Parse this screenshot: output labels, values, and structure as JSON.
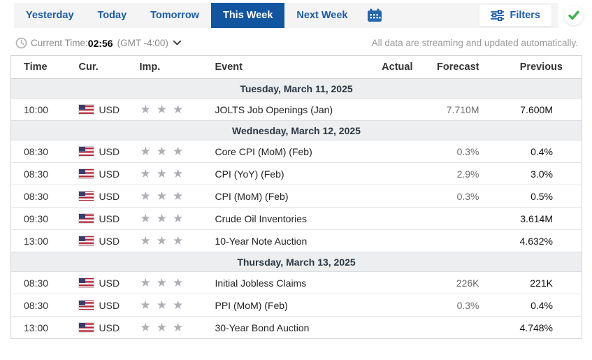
{
  "toolbar": {
    "tabs": [
      {
        "label": "Yesterday",
        "active": false
      },
      {
        "label": "Today",
        "active": false
      },
      {
        "label": "Tomorrow",
        "active": false
      },
      {
        "label": "This Week",
        "active": true
      },
      {
        "label": "Next Week",
        "active": false
      }
    ],
    "calendar_icon": "date-picker-calendar-icon",
    "filters_label": "Filters",
    "filters_icon": "sliders-icon",
    "status_icon": "green-check-icon"
  },
  "timebar": {
    "clock_icon": "clock-icon",
    "label": "Current Time:",
    "time": "02:56",
    "timezone": "(GMT -4:00)",
    "chevron_icon": "chevron-down-icon",
    "note": "All data are streaming and updated automatically."
  },
  "table": {
    "headers": {
      "time": "Time",
      "cur": "Cur.",
      "imp": "Imp.",
      "event": "Event",
      "actual": "Actual",
      "forecast": "Forecast",
      "previous": "Previous"
    },
    "star_char": "★",
    "flag_icon": "us-flag-icon",
    "sections": [
      {
        "date": "Tuesday, March 11, 2025",
        "rows": [
          {
            "time": "10:00",
            "currency": "USD",
            "importance": 3,
            "event": "JOLTS Job Openings (Jan)",
            "actual": "",
            "forecast": "7.710M",
            "previous": "7.600M"
          }
        ]
      },
      {
        "date": "Wednesday, March 12, 2025",
        "rows": [
          {
            "time": "08:30",
            "currency": "USD",
            "importance": 3,
            "event": "Core CPI (MoM) (Feb)",
            "actual": "",
            "forecast": "0.3%",
            "previous": "0.4%"
          },
          {
            "time": "08:30",
            "currency": "USD",
            "importance": 3,
            "event": "CPI (YoY) (Feb)",
            "actual": "",
            "forecast": "2.9%",
            "previous": "3.0%"
          },
          {
            "time": "08:30",
            "currency": "USD",
            "importance": 3,
            "event": "CPI (MoM) (Feb)",
            "actual": "",
            "forecast": "0.3%",
            "previous": "0.5%"
          },
          {
            "time": "09:30",
            "currency": "USD",
            "importance": 3,
            "event": "Crude Oil Inventories",
            "actual": "",
            "forecast": "",
            "previous": "3.614M"
          },
          {
            "time": "13:00",
            "currency": "USD",
            "importance": 3,
            "event": "10-Year Note Auction",
            "actual": "",
            "forecast": "",
            "previous": "4.632%"
          }
        ]
      },
      {
        "date": "Thursday, March 13, 2025",
        "rows": [
          {
            "time": "08:30",
            "currency": "USD",
            "importance": 3,
            "event": "Initial Jobless Claims",
            "actual": "",
            "forecast": "226K",
            "previous": "221K"
          },
          {
            "time": "08:30",
            "currency": "USD",
            "importance": 3,
            "event": "PPI (MoM) (Feb)",
            "actual": "",
            "forecast": "0.3%",
            "previous": "0.4%"
          },
          {
            "time": "13:00",
            "currency": "USD",
            "importance": 3,
            "event": "30-Year Bond Auction",
            "actual": "",
            "forecast": "",
            "previous": "4.748%"
          }
        ]
      }
    ]
  },
  "colors": {
    "accent_blue": "#1b5ca8",
    "active_tab_bg": "#1155a0",
    "tabbar_bg": "#f4f4f4",
    "date_row_bg": "#eceef0",
    "star_gray": "#aeaeb4",
    "check_green": "#3bb54a"
  }
}
